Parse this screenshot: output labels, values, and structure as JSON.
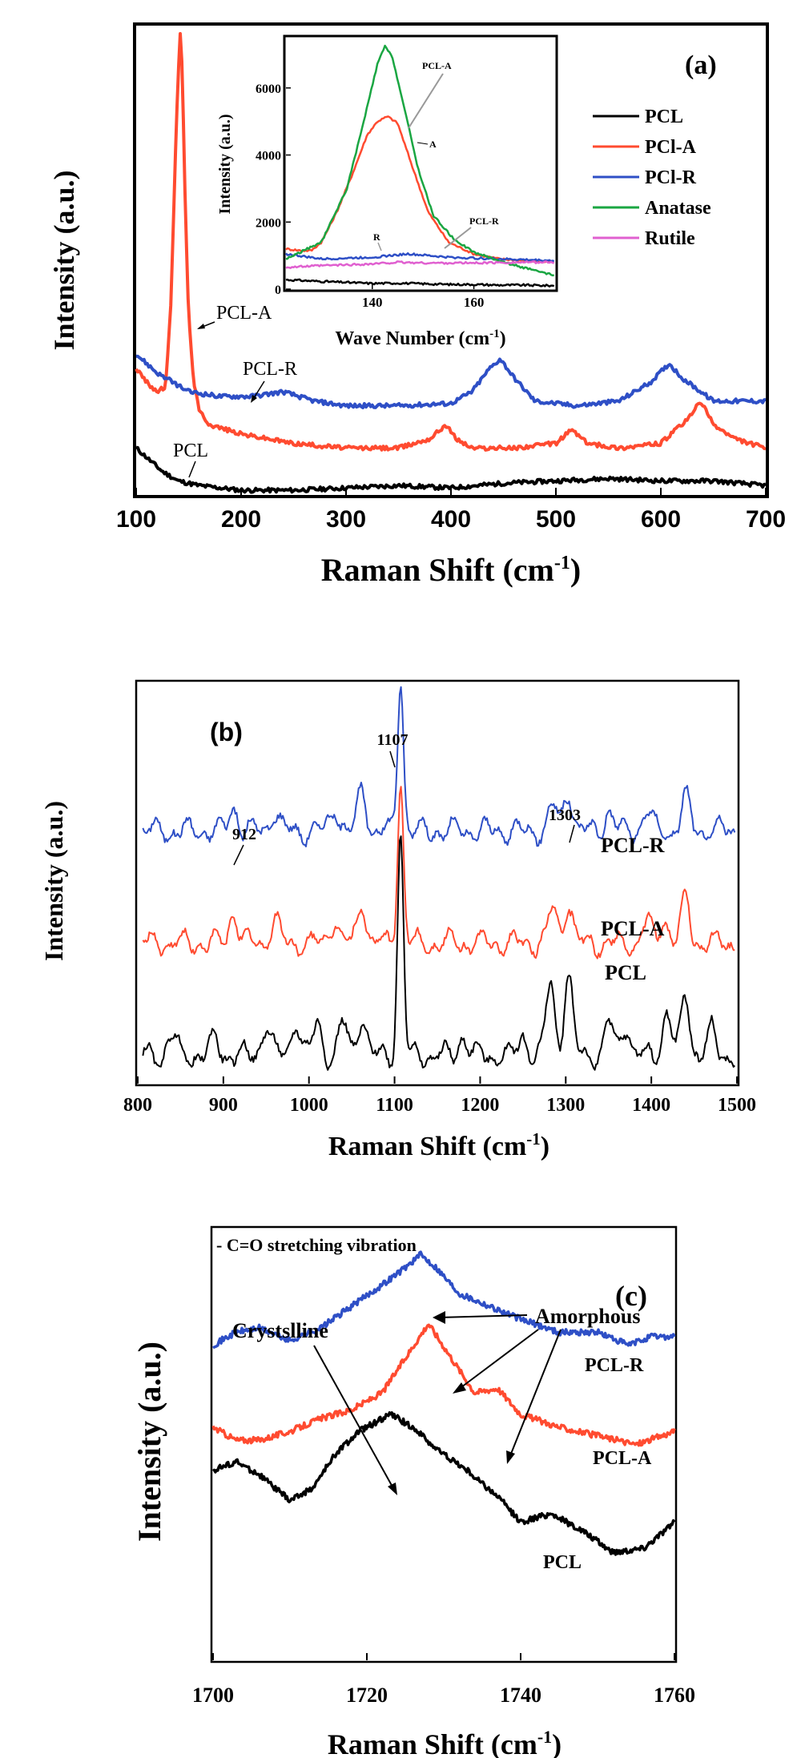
{
  "chart_data": [
    {
      "id": "a",
      "type": "line",
      "panel_label": "(a)",
      "xlabel": "Raman Shift (cm",
      "xlabel_sup": "-1",
      "xlabel_close": ")",
      "ylabel": "Intensity (a.u.)",
      "xlim": [
        100,
        700
      ],
      "ylim": [
        0,
        100
      ],
      "xticks": [
        "100",
        "200",
        "300",
        "400",
        "500",
        "600",
        "700"
      ],
      "colors": {
        "PCL": "#000000",
        "PCl-A": "#ff4b30",
        "PCl-R": "#2e4fc6",
        "Anatase": "#1aa642",
        "Rutile": "#e060d0"
      },
      "legend": [
        "PCL",
        "PCl-A",
        "PCl-R",
        "Anatase",
        "Rutile"
      ],
      "annotations": [
        "PCL-A",
        "PCL-R",
        "PCL"
      ],
      "series": [
        {
          "label": "PCL",
          "color": "#000000",
          "points": [
            [
              100,
              10
            ],
            [
              110,
              8
            ],
            [
              125,
              5
            ],
            [
              140,
              3
            ],
            [
              160,
              2
            ],
            [
              200,
              1
            ],
            [
              250,
              1
            ],
            [
              300,
              1.5
            ],
            [
              350,
              2
            ],
            [
              400,
              1.5
            ],
            [
              450,
              2.5
            ],
            [
              500,
              3
            ],
            [
              550,
              3.5
            ],
            [
              600,
              3
            ],
            [
              650,
              3
            ],
            [
              700,
              2
            ]
          ]
        },
        {
          "label": "PCl-A",
          "color": "#ff4b30",
          "points": [
            [
              100,
              27
            ],
            [
              110,
              24
            ],
            [
              120,
              22
            ],
            [
              128,
              23
            ],
            [
              133,
              40
            ],
            [
              137,
              70
            ],
            [
              140,
              90
            ],
            [
              142,
              98
            ],
            [
              144,
              90
            ],
            [
              147,
              60
            ],
            [
              150,
              38
            ],
            [
              155,
              24
            ],
            [
              160,
              18
            ],
            [
              170,
              15
            ],
            [
              200,
              13
            ],
            [
              250,
              11
            ],
            [
              300,
              10
            ],
            [
              350,
              10
            ],
            [
              380,
              12
            ],
            [
              395,
              15
            ],
            [
              405,
              12
            ],
            [
              420,
              10
            ],
            [
              460,
              10
            ],
            [
              500,
              11
            ],
            [
              515,
              14
            ],
            [
              530,
              11
            ],
            [
              560,
              10
            ],
            [
              600,
              11
            ],
            [
              625,
              16
            ],
            [
              638,
              20
            ],
            [
              650,
              15
            ],
            [
              670,
              12
            ],
            [
              700,
              10
            ]
          ]
        },
        {
          "label": "PCl-R",
          "color": "#2e4fc6",
          "points": [
            [
              100,
              30
            ],
            [
              120,
              26
            ],
            [
              150,
              22
            ],
            [
              180,
              21
            ],
            [
              210,
              21
            ],
            [
              240,
              22
            ],
            [
              270,
              20
            ],
            [
              300,
              19
            ],
            [
              350,
              19
            ],
            [
              400,
              19.5
            ],
            [
              420,
              22
            ],
            [
              437,
              27
            ],
            [
              447,
              29
            ],
            [
              460,
              25
            ],
            [
              480,
              20
            ],
            [
              520,
              19
            ],
            [
              560,
              20
            ],
            [
              590,
              24
            ],
            [
              608,
              28
            ],
            [
              620,
              25
            ],
            [
              650,
              20
            ],
            [
              700,
              20
            ]
          ]
        }
      ]
    },
    {
      "id": "a-inset",
      "type": "line",
      "xlabel": "Wave Number (cm",
      "xlabel_sup": "-1",
      "xlabel_close": ")",
      "ylabel": "Intensity (a.u.)",
      "xlim": [
        123,
        176
      ],
      "ylim": [
        0,
        7500
      ],
      "xticks": [
        140,
        160
      ],
      "yticks": [
        0,
        2000,
        4000,
        6000
      ],
      "annotations": [
        "PCL-A",
        "A",
        "PCL-R",
        "R"
      ],
      "series": [
        {
          "label": "PCL",
          "color": "#000000",
          "points": [
            [
              123,
              280
            ],
            [
              130,
              230
            ],
            [
              135,
              200
            ],
            [
              140,
              170
            ],
            [
              145,
              180
            ],
            [
              150,
              160
            ],
            [
              155,
              140
            ],
            [
              160,
              140
            ],
            [
              165,
              120
            ],
            [
              170,
              120
            ],
            [
              176,
              100
            ]
          ]
        },
        {
          "label": "PCl-A",
          "color": "#ff4b30",
          "points": [
            [
              123,
              1200
            ],
            [
              126,
              1150
            ],
            [
              128,
              1150
            ],
            [
              130,
              1400
            ],
            [
              133,
              2300
            ],
            [
              136,
              3400
            ],
            [
              139,
              4600
            ],
            [
              141,
              5000
            ],
            [
              143,
              5150
            ],
            [
              145,
              4950
            ],
            [
              148,
              3600
            ],
            [
              151,
              2300
            ],
            [
              155,
              1400
            ],
            [
              160,
              1050
            ],
            [
              165,
              900
            ],
            [
              170,
              850
            ],
            [
              176,
              800
            ]
          ]
        },
        {
          "label": "PCl-R",
          "color": "#2e4fc6",
          "points": [
            [
              123,
              1050
            ],
            [
              130,
              900
            ],
            [
              140,
              950
            ],
            [
              147,
              1050
            ],
            [
              155,
              950
            ],
            [
              165,
              900
            ],
            [
              176,
              850
            ]
          ]
        },
        {
          "label": "Anatase",
          "color": "#1aa642",
          "points": [
            [
              123,
              900
            ],
            [
              130,
              1400
            ],
            [
              135,
              3000
            ],
            [
              138,
              4800
            ],
            [
              141,
              6700
            ],
            [
              142.5,
              7250
            ],
            [
              144,
              6900
            ],
            [
              146,
              5600
            ],
            [
              149,
              3600
            ],
            [
              152,
              2200
            ],
            [
              156,
              1500
            ],
            [
              160,
              1100
            ],
            [
              166,
              800
            ],
            [
              172,
              550
            ],
            [
              176,
              400
            ]
          ]
        },
        {
          "label": "Rutile",
          "color": "#e060d0",
          "points": [
            [
              123,
              650
            ],
            [
              130,
              700
            ],
            [
              140,
              750
            ],
            [
              145,
              800
            ],
            [
              150,
              780
            ],
            [
              160,
              780
            ],
            [
              170,
              800
            ],
            [
              176,
              800
            ]
          ]
        }
      ]
    },
    {
      "id": "b",
      "type": "line",
      "panel_label": "(b)",
      "xlabel": "Raman Shift (cm",
      "xlabel_sup": "-1",
      "xlabel_close": ")",
      "ylabel": "Intensity (a.u.)",
      "xlim": [
        800,
        1500
      ],
      "ylim": [
        0,
        100
      ],
      "xticks": [
        "800",
        "900",
        "1000",
        "1100",
        "1200",
        "1300",
        "1400",
        "1500"
      ],
      "peak_labels": [
        {
          "x": 912,
          "label": "912"
        },
        {
          "x": 1107,
          "label": "1107"
        },
        {
          "x": 1303,
          "label": "1303"
        }
      ],
      "series_labels": [
        "PCL-R",
        "PCL-A",
        "PCL"
      ],
      "series": [
        {
          "label": "PCL-R",
          "color": "#2e4fc6",
          "offset": 60,
          "peaks": [
            [
              912,
              6
            ],
            [
              960,
              5
            ],
            [
              1030,
              6
            ],
            [
              1062,
              10
            ],
            [
              1107,
              38
            ],
            [
              1285,
              6
            ],
            [
              1303,
              10
            ],
            [
              1350,
              5
            ],
            [
              1395,
              5
            ],
            [
              1440,
              8
            ]
          ]
        },
        {
          "label": "PCL-A",
          "color": "#ff4b30",
          "offset": 32,
          "peaks": [
            [
              912,
              8
            ],
            [
              960,
              6
            ],
            [
              1030,
              6
            ],
            [
              1062,
              10
            ],
            [
              1107,
              40
            ],
            [
              1285,
              9
            ],
            [
              1303,
              10
            ],
            [
              1395,
              5
            ],
            [
              1415,
              6
            ],
            [
              1440,
              11
            ]
          ]
        },
        {
          "label": "PCL",
          "color": "#000000",
          "offset": 4,
          "peaks": [
            [
              840,
              5
            ],
            [
              890,
              4
            ],
            [
              950,
              8
            ],
            [
              985,
              9
            ],
            [
              1010,
              8
            ],
            [
              1040,
              8
            ],
            [
              1062,
              10
            ],
            [
              1107,
              55
            ],
            [
              1180,
              5
            ],
            [
              1250,
              5
            ],
            [
              1282,
              18
            ],
            [
              1303,
              20
            ],
            [
              1350,
              8
            ],
            [
              1370,
              8
            ],
            [
              1418,
              11
            ],
            [
              1440,
              15
            ],
            [
              1470,
              6
            ]
          ]
        }
      ]
    },
    {
      "id": "c",
      "type": "line",
      "panel_label": "(c)",
      "title": "- C=O stretching vibration",
      "xlabel": "Raman Shift (cm",
      "xlabel_sup": "-1",
      "xlabel_close": ")",
      "ylabel": "Intensity (a.u.)",
      "xlim": [
        1700,
        1760
      ],
      "ylim": [
        0,
        100
      ],
      "xticks": [
        "1700",
        "1720",
        "1740",
        "1760"
      ],
      "annotations": [
        "Amorphous",
        "Crystslline"
      ],
      "series_labels": [
        "PCL-R",
        "PCL-A",
        "PCL"
      ],
      "series": [
        {
          "label": "PCL-R",
          "color": "#2e4fc6",
          "points": [
            [
              1700,
              73
            ],
            [
              1703,
              76
            ],
            [
              1706,
              77
            ],
            [
              1710,
              74
            ],
            [
              1714,
              77
            ],
            [
              1718,
              82
            ],
            [
              1722,
              87
            ],
            [
              1725,
              91
            ],
            [
              1727,
              94
            ],
            [
              1729,
              91
            ],
            [
              1732,
              85
            ],
            [
              1736,
              82
            ],
            [
              1740,
              79
            ],
            [
              1745,
              76
            ],
            [
              1750,
              76
            ],
            [
              1754,
              73
            ],
            [
              1757,
              75
            ],
            [
              1760,
              75
            ]
          ]
        },
        {
          "label": "PCL-A",
          "color": "#ff4b30",
          "points": [
            [
              1700,
              54
            ],
            [
              1703,
              51
            ],
            [
              1706,
              51
            ],
            [
              1710,
              53
            ],
            [
              1714,
              56
            ],
            [
              1718,
              58
            ],
            [
              1722,
              62
            ],
            [
              1725,
              70
            ],
            [
              1728,
              78
            ],
            [
              1731,
              70
            ],
            [
              1734,
              62
            ],
            [
              1737,
              63
            ],
            [
              1740,
              57
            ],
            [
              1745,
              54
            ],
            [
              1750,
              52
            ],
            [
              1755,
              50
            ],
            [
              1760,
              53
            ]
          ]
        },
        {
          "label": "PCL",
          "color": "#000000",
          "points": [
            [
              1700,
              44
            ],
            [
              1703,
              46
            ],
            [
              1706,
              43
            ],
            [
              1710,
              37
            ],
            [
              1713,
              40
            ],
            [
              1716,
              48
            ],
            [
              1719,
              53
            ],
            [
              1723,
              57
            ],
            [
              1726,
              54
            ],
            [
              1729,
              49
            ],
            [
              1733,
              44
            ],
            [
              1737,
              38
            ],
            [
              1740,
              32
            ],
            [
              1744,
              34
            ],
            [
              1748,
              30
            ],
            [
              1752,
              25
            ],
            [
              1756,
              26
            ],
            [
              1760,
              32
            ]
          ]
        }
      ]
    }
  ]
}
